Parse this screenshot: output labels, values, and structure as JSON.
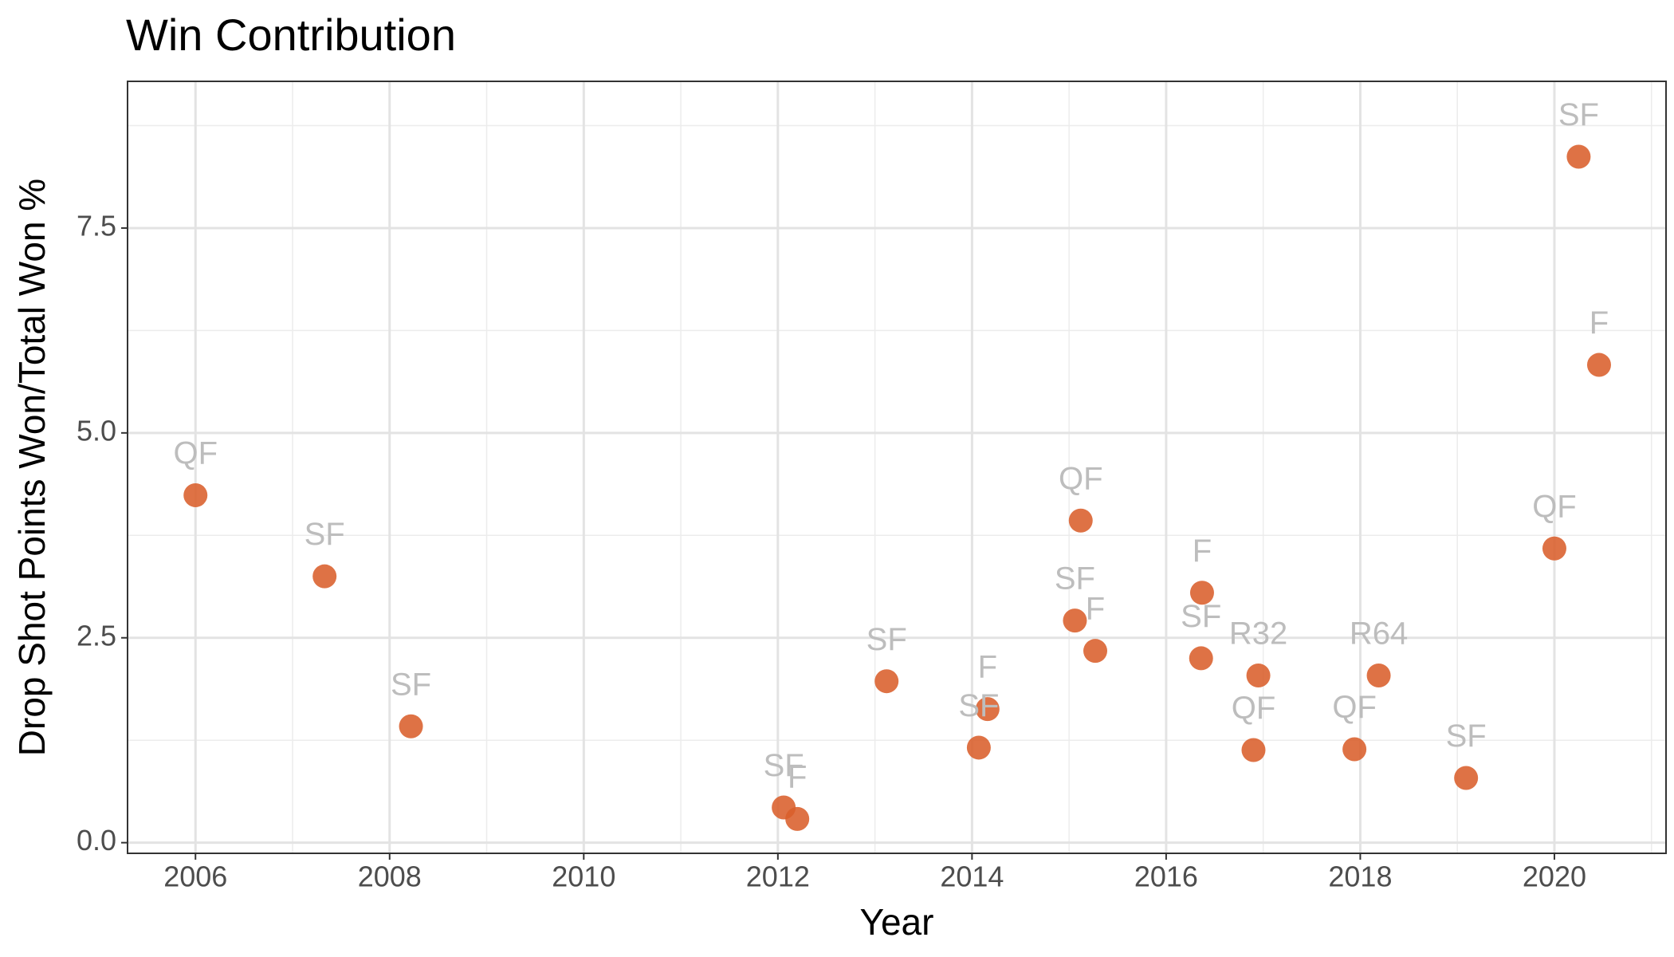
{
  "chart_data": {
    "type": "scatter",
    "title": "Win Contribution",
    "x_label": "Year",
    "y_label": "Drop Shot Points Won/Total Won %",
    "x": [
      2006.0,
      2007.33,
      2008.22,
      2012.06,
      2012.2,
      2013.12,
      2014.07,
      2014.16,
      2015.12,
      2015.06,
      2015.27,
      2016.37,
      2016.36,
      2016.95,
      2016.9,
      2018.19,
      2017.94,
      2019.09,
      2020.0,
      2020.25,
      2020.46
    ],
    "values": [
      4.24,
      3.25,
      1.42,
      0.43,
      0.29,
      1.97,
      1.16,
      1.63,
      3.93,
      2.71,
      2.34,
      3.05,
      2.25,
      2.04,
      1.13,
      2.04,
      1.14,
      0.79,
      3.59,
      8.37,
      5.83
    ],
    "labels": [
      "QF",
      "SF",
      "SF",
      "SF",
      "F",
      "SF",
      "SF",
      "F",
      "QF",
      "SF",
      "F",
      "F",
      "SF",
      "R32",
      "QF",
      "R64",
      "QF",
      "SF",
      "QF",
      "SF",
      "F"
    ],
    "color": "#d95f2b",
    "xlim": [
      2005.3,
      2021.15
    ],
    "ylim": [
      -0.13,
      9.29
    ],
    "xticks": [
      2006,
      2008,
      2010,
      2012,
      2014,
      2016,
      2018,
      2020
    ],
    "yticks": [
      {
        "value": 0,
        "label": "0.0"
      },
      2.5,
      {
        "value": 5,
        "label": "5.0"
      },
      7.5
    ],
    "xminorticks": [
      2007,
      2009,
      2011,
      2013,
      2015,
      2017,
      2019,
      2021
    ],
    "yminorticks": [
      1.25,
      3.75,
      6.25,
      8.75
    ],
    "grid": true
  }
}
